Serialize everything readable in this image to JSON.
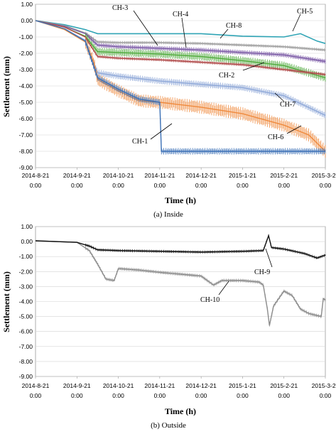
{
  "chart_data": [
    {
      "type": "line",
      "caption": "(a)  Inside",
      "xlabel": "Time (h)",
      "ylabel": "Settlement (mm)",
      "ylim": [
        -9.0,
        1.0
      ],
      "yticks": [
        "1.00",
        "0.00",
        "-1.00",
        "-2.00",
        "-3.00",
        "-4.00",
        "-5.00",
        "-6.00",
        "-7.00",
        "-8.00",
        "-9.00"
      ],
      "xticks": [
        {
          "date": "2014-8-21",
          "time": "0:00"
        },
        {
          "date": "2014-9-21",
          "time": "0:00"
        },
        {
          "date": "2014-10-21",
          "time": "0:00"
        },
        {
          "date": "2014-11-21",
          "time": "0:00"
        },
        {
          "date": "2014-12-21",
          "time": "0:00"
        },
        {
          "date": "2015-1-21",
          "time": "0:00"
        },
        {
          "date": "2015-2-21",
          "time": "0:00"
        },
        {
          "date": "2015-3-21",
          "time": "0:00"
        }
      ],
      "grid": true,
      "series": [
        {
          "name": "CH-5",
          "color": "#2fa4b5",
          "band": 0.04,
          "points": [
            [
              0,
              0.0
            ],
            [
              0.7,
              -0.25
            ],
            [
              1.2,
              -0.55
            ],
            [
              1.5,
              -0.8
            ],
            [
              2,
              -0.8
            ],
            [
              3,
              -0.8
            ],
            [
              4,
              -0.8
            ],
            [
              5,
              -0.95
            ],
            [
              6,
              -1.0
            ],
            [
              6.4,
              -0.8
            ],
            [
              6.8,
              -1.25
            ],
            [
              7,
              -1.4
            ]
          ]
        },
        {
          "name": "CH-8",
          "color": "#9e9e9e",
          "band": 0.1,
          "points": [
            [
              0,
              0.0
            ],
            [
              0.7,
              -0.3
            ],
            [
              1.2,
              -0.75
            ],
            [
              1.5,
              -1.3
            ],
            [
              2,
              -1.35
            ],
            [
              3,
              -1.35
            ],
            [
              4,
              -1.4
            ],
            [
              5,
              -1.5
            ],
            [
              6,
              -1.6
            ],
            [
              7,
              -1.8
            ]
          ]
        },
        {
          "name": "CH-4",
          "color": "#7b5aa6",
          "band": 0.15,
          "points": [
            [
              0,
              0.0
            ],
            [
              0.7,
              -0.35
            ],
            [
              1.2,
              -0.8
            ],
            [
              1.5,
              -1.5
            ],
            [
              2,
              -1.6
            ],
            [
              3,
              -1.7
            ],
            [
              4,
              -1.8
            ],
            [
              5,
              -1.95
            ],
            [
              6,
              -2.1
            ],
            [
              7,
              -2.5
            ]
          ]
        },
        {
          "name": "CH-3",
          "color": "#4faa3c",
          "band": 0.25,
          "points": [
            [
              0,
              0.0
            ],
            [
              0.7,
              -0.4
            ],
            [
              1.2,
              -0.95
            ],
            [
              1.5,
              -1.9
            ],
            [
              2,
              -1.95
            ],
            [
              3,
              -2.05
            ],
            [
              4,
              -2.2
            ],
            [
              5,
              -2.45
            ],
            [
              6,
              -2.75
            ],
            [
              7,
              -3.5
            ]
          ]
        },
        {
          "name": "CH-2",
          "color": "#b04a4a",
          "band": 0.1,
          "points": [
            [
              0,
              0.0
            ],
            [
              0.7,
              -0.4
            ],
            [
              1.2,
              -1.0
            ],
            [
              1.5,
              -2.2
            ],
            [
              2,
              -2.3
            ],
            [
              3,
              -2.4
            ],
            [
              4,
              -2.55
            ],
            [
              5,
              -2.7
            ],
            [
              6,
              -3.0
            ],
            [
              7,
              -3.3
            ]
          ]
        },
        {
          "name": "CH-7",
          "color": "#8fa8d8",
          "band": 0.2,
          "points": [
            [
              0,
              0.0
            ],
            [
              0.7,
              -0.5
            ],
            [
              1.2,
              -1.2
            ],
            [
              1.5,
              -3.2
            ],
            [
              2,
              -3.4
            ],
            [
              3,
              -3.7
            ],
            [
              4,
              -3.9
            ],
            [
              5,
              -4.1
            ],
            [
              6,
              -4.6
            ],
            [
              7,
              -5.8
            ]
          ]
        },
        {
          "name": "CH-6",
          "color": "#ef8a3d",
          "band": 0.4,
          "points": [
            [
              0,
              0.0
            ],
            [
              0.7,
              -0.55
            ],
            [
              1.2,
              -1.3
            ],
            [
              1.4,
              -2.5
            ],
            [
              1.5,
              -3.6
            ],
            [
              2,
              -4.3
            ],
            [
              2.5,
              -4.9
            ],
            [
              3,
              -5.0
            ],
            [
              4,
              -5.3
            ],
            [
              5,
              -5.7
            ],
            [
              6,
              -6.4
            ],
            [
              6.6,
              -7.0
            ],
            [
              7,
              -8.0
            ]
          ]
        },
        {
          "name": "CH-1",
          "color": "#3a6fb5",
          "band": 0.2,
          "points": [
            [
              0,
              0.0
            ],
            [
              0.7,
              -0.5
            ],
            [
              1.2,
              -1.25
            ],
            [
              1.5,
              -3.5
            ],
            [
              2,
              -4.2
            ],
            [
              2.5,
              -4.8
            ],
            [
              3,
              -5.0
            ],
            [
              3.04,
              -8.0
            ],
            [
              7,
              -8.0
            ]
          ]
        }
      ],
      "annotations": [
        "CH-3",
        "CH-4",
        "CH-8",
        "CH-5",
        "CH-2",
        "CH-7",
        "CH-1",
        "CH-6"
      ]
    },
    {
      "type": "line",
      "caption": "(b)  Outside",
      "xlabel": "Time (h)",
      "ylabel": "Settlement (mm)",
      "ylim": [
        -9.0,
        1.0
      ],
      "yticks": [
        "1.00",
        "0.00",
        "-1.00",
        "-2.00",
        "-3.00",
        "-4.00",
        "-5.00",
        "-6.00",
        "-7.00",
        "-8.00",
        "-9.00"
      ],
      "xticks": [
        {
          "date": "2014-8-21",
          "time": "0:00"
        },
        {
          "date": "2014-9-21",
          "time": "0:00"
        },
        {
          "date": "2014-10-21",
          "time": "0:00"
        },
        {
          "date": "2014-11-21",
          "time": "0:00"
        },
        {
          "date": "2014-12-21",
          "time": "0:00"
        },
        {
          "date": "2015-1-21",
          "time": "0:00"
        },
        {
          "date": "2015-2-21",
          "time": "0:00"
        },
        {
          "date": "2015-3-21",
          "time": "0:00"
        }
      ],
      "grid": true,
      "series": [
        {
          "name": "CH-10",
          "color": "#8c8c8c",
          "band": 0.12,
          "points": [
            [
              0,
              0.05
            ],
            [
              1.0,
              -0.05
            ],
            [
              1.3,
              -0.6
            ],
            [
              1.5,
              -1.5
            ],
            [
              1.7,
              -2.5
            ],
            [
              1.9,
              -2.6
            ],
            [
              2.0,
              -1.8
            ],
            [
              2.5,
              -1.9
            ],
            [
              3,
              -2.05
            ],
            [
              3.6,
              -2.2
            ],
            [
              4,
              -2.3
            ],
            [
              4.3,
              -2.9
            ],
            [
              4.5,
              -2.6
            ],
            [
              5,
              -2.6
            ],
            [
              5.4,
              -2.7
            ],
            [
              5.5,
              -2.9
            ],
            [
              5.6,
              -4.5
            ],
            [
              5.65,
              -5.6
            ],
            [
              5.75,
              -4.3
            ],
            [
              6.0,
              -3.3
            ],
            [
              6.2,
              -3.6
            ],
            [
              6.4,
              -4.5
            ],
            [
              6.6,
              -4.8
            ],
            [
              6.9,
              -5.0
            ],
            [
              6.95,
              -3.8
            ],
            [
              7,
              -3.9
            ]
          ]
        },
        {
          "name": "CH-9",
          "color": "#111111",
          "band": 0.1,
          "points": [
            [
              0,
              0.05
            ],
            [
              1.0,
              -0.05
            ],
            [
              1.3,
              -0.3
            ],
            [
              1.5,
              -0.55
            ],
            [
              2,
              -0.6
            ],
            [
              3,
              -0.65
            ],
            [
              4,
              -0.7
            ],
            [
              5,
              -0.65
            ],
            [
              5.5,
              -0.6
            ],
            [
              5.63,
              0.4
            ],
            [
              5.7,
              -0.4
            ],
            [
              6,
              -0.5
            ],
            [
              6.5,
              -0.8
            ],
            [
              6.8,
              -1.1
            ],
            [
              7,
              -0.9
            ]
          ]
        }
      ],
      "annotations": [
        "CH-9",
        "CH-10"
      ]
    }
  ]
}
